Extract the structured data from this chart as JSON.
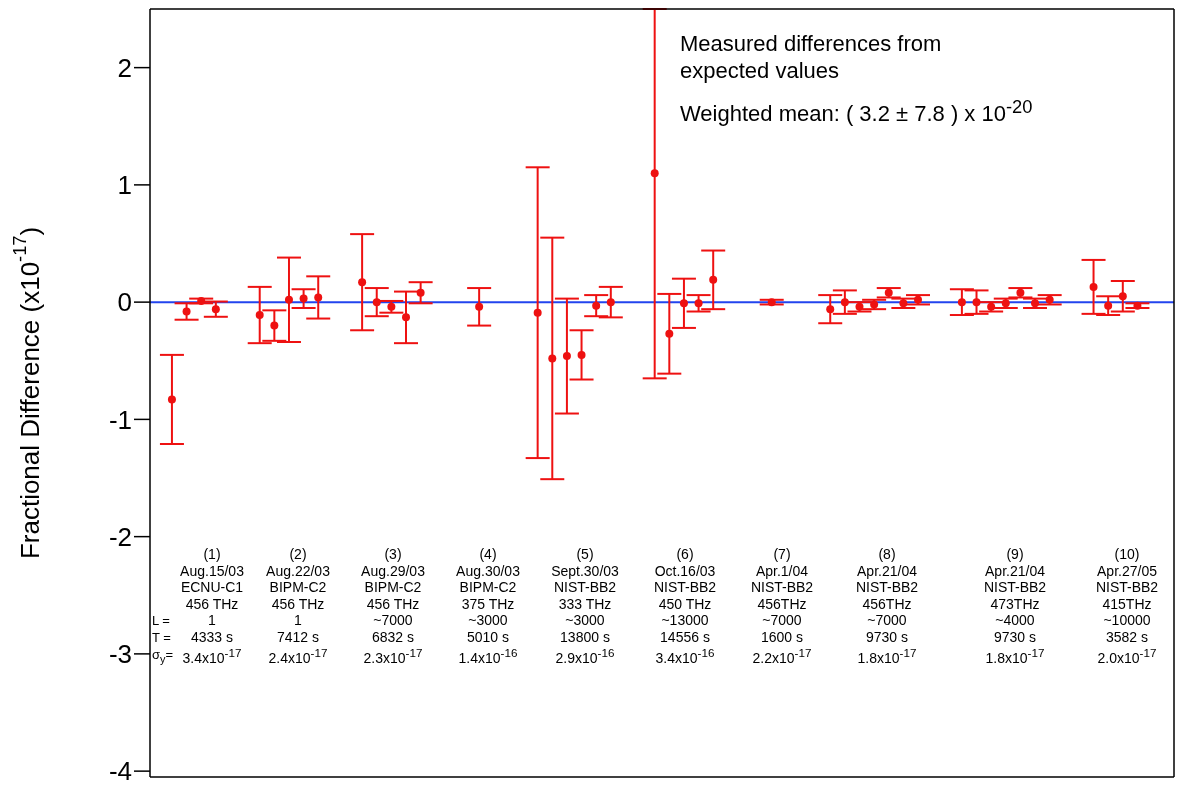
{
  "chart_data": {
    "type": "scatter",
    "ylabel": "Fractional Difference (x10$^{-17}$)",
    "categories": [
      null,
      null,
      null,
      null,
      null,
      null,
      null,
      null,
      null,
      null,
      null,
      null,
      null,
      null,
      null,
      null,
      null,
      null,
      null,
      null,
      null,
      null,
      null,
      null,
      null,
      null,
      null,
      null,
      null,
      null,
      null,
      null,
      null,
      null,
      null,
      null,
      null,
      null,
      null,
      null,
      null,
      null,
      null,
      null,
      null,
      null,
      null,
      null,
      null,
      null,
      null,
      null,
      null,
      null,
      null,
      null,
      null,
      null,
      null,
      null,
      null,
      null,
      null,
      null,
      null,
      null,
      null,
      null,
      null,
      null
    ],
    "values": [
      null,
      -0.83,
      -0.08,
      0.01,
      -0.06,
      null,
      null,
      -0.11,
      -0.2,
      0.02,
      0.03,
      0.04,
      null,
      null,
      0.17,
      0.0,
      -0.04,
      -0.13,
      0.08,
      null,
      null,
      null,
      -0.04,
      null,
      null,
      null,
      -0.09,
      -0.48,
      -0.46,
      -0.45,
      -0.03,
      0.0,
      null,
      null,
      1.1,
      -0.27,
      -0.01,
      -0.01,
      0.19,
      null,
      null,
      null,
      0.0,
      null,
      null,
      null,
      -0.06,
      0.0,
      -0.04,
      -0.02,
      0.08,
      -0.01,
      0.02,
      null,
      null,
      -0.0,
      0.0,
      -0.04,
      -0.01,
      0.08,
      -0.01,
      0.02,
      null,
      null,
      0.13,
      -0.03,
      0.05,
      -0.03,
      null,
      null
    ],
    "errors": [
      null,
      0.38,
      0.07,
      0.02,
      0.065,
      null,
      null,
      0.24,
      0.13,
      0.36,
      0.08,
      0.18,
      null,
      null,
      0.41,
      0.12,
      0.05,
      0.22,
      0.09,
      null,
      null,
      null,
      0.16,
      null,
      null,
      null,
      1.24,
      1.03,
      0.49,
      0.21,
      0.09,
      0.13,
      null,
      null,
      [
        -0.65,
        2.5
      ],
      0.34,
      0.21,
      0.07,
      0.25,
      null,
      null,
      null,
      0.02,
      null,
      null,
      null,
      0.12,
      0.1,
      0.04,
      0.04,
      0.04,
      0.04,
      0.04,
      null,
      null,
      0.11,
      0.1,
      0.04,
      0.04,
      0.04,
      0.04,
      0.04,
      null,
      null,
      0.23,
      0.08,
      0.13,
      0.02,
      null,
      null
    ],
    "color": "#ee1111",
    "marker": "circle",
    "ylim": [
      -4.05,
      2.5
    ],
    "yticks": [
      -4,
      -3,
      -2,
      -1,
      0,
      1,
      2
    ],
    "tick_labels": "y",
    "ref_lines": [
      {
        "axis": "y",
        "value": 0,
        "color": "#2244ee"
      }
    ],
    "annotations": [
      "Measured differences from\nexpected values",
      "Weighted mean: ( 3.2 ± 7.8 ) x 10$^{-20}$",
      "L =",
      "T =",
      "σ$_{y}$=",
      "(1)\nAug.15/03\nECNU-C1\n456 THz\n1\n4333 s\n3.4x10$^{-17}$",
      "(2)\nAug.22/03\nBIPM-C2\n456 THz\n1\n7412 s\n2.4x10$^{-17}$",
      "(3)\nAug.29/03\nBIPM-C2\n456 THz\n~7000\n6832 s\n2.3x10$^{-17}$",
      "(4)\nAug.30/03\nBIPM-C2\n375 THz\n~3000\n5010 s\n1.4x10$^{-16}$",
      "(5)\nSept.30/03\nNIST-BB2\n333 THz\n~3000\n13800 s\n2.9x10$^{-16}$",
      "(6)\nOct.16/03\nNIST-BB2\n450 THz\n~13000\n14556 s\n3.4x10$^{-16}$",
      "(7)\nApr.1/04\nNIST-BB2\n456THz\n~7000\n1600 s\n2.2x10$^{-17}$",
      "(8)\nApr.21/04\nNIST-BB2\n456THz\n~7000\n9730 s\n1.8x10$^{-17}$",
      "(9)\nApr.21/04\nNIST-BB2\n473THz\n~4000\n9730 s\n1.8x10$^{-17}$",
      "(10)\nApr.27/05\nNIST-BB2\n415THz\n~10000\n3582 s\n2.0x10$^{-17}$"
    ]
  }
}
